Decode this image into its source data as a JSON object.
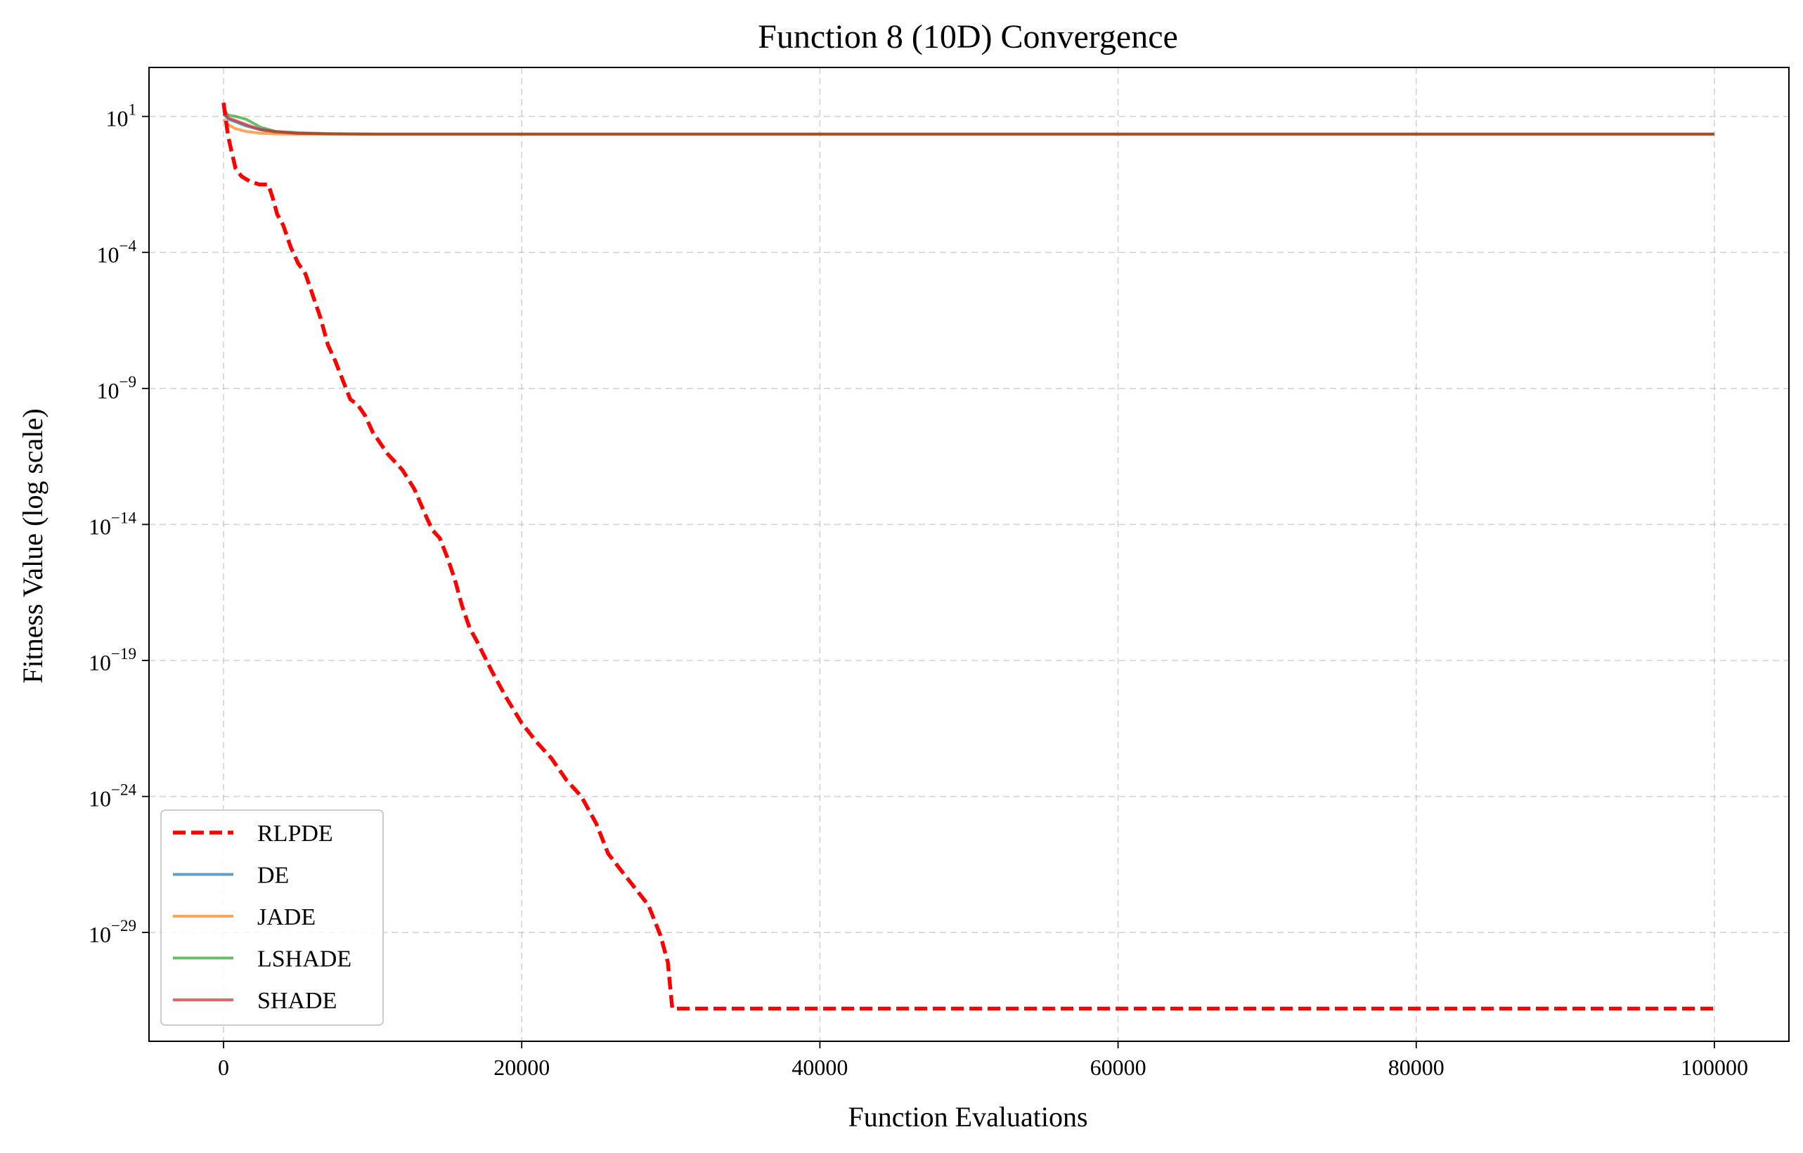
{
  "chart_data": {
    "type": "line",
    "title": "Function 8 (10D) Convergence",
    "xlabel": "Function Evaluations",
    "ylabel": "Fitness Value (log scale)",
    "yscale": "log",
    "xlim": [
      -5000,
      105000
    ],
    "ylim_log10": [
      -33.0,
      2.8
    ],
    "x_ticks": [
      0,
      20000,
      40000,
      60000,
      80000,
      100000
    ],
    "x_tick_labels": [
      "0",
      "20000",
      "40000",
      "60000",
      "80000",
      "100000"
    ],
    "y_ticks_log10": [
      1,
      -4,
      -9,
      -14,
      -19,
      -24,
      -29
    ],
    "y_tick_base": "10",
    "y_tick_exponents": [
      "1",
      "−4",
      "−9",
      "−14",
      "−19",
      "−24",
      "−29"
    ],
    "grid": true,
    "legend_position": "lower-left",
    "series": [
      {
        "name": "RLPDE",
        "color": "#ff0000",
        "style": "dashed",
        "x": [
          0,
          150,
          300,
          500,
          800,
          1200,
          1800,
          2400,
          3000,
          3300,
          3600,
          4000,
          4500,
          5000,
          5500,
          6000,
          6500,
          7000,
          7500,
          8000,
          8500,
          9000,
          9500,
          10000,
          11000,
          12000,
          12800,
          13500,
          14000,
          14500,
          15000,
          15500,
          16000,
          16500,
          17000,
          18000,
          19000,
          20000,
          21000,
          22000,
          23000,
          24000,
          25000,
          25800,
          26500,
          27500,
          28500,
          29300,
          29800,
          30100,
          30200,
          100000
        ],
        "y_log10": [
          1.5,
          0.9,
          0.3,
          -0.2,
          -0.9,
          -1.2,
          -1.4,
          -1.5,
          -1.5,
          -2.0,
          -2.6,
          -3.0,
          -3.8,
          -4.4,
          -4.8,
          -5.6,
          -6.4,
          -7.4,
          -8.0,
          -8.7,
          -9.4,
          -9.6,
          -10.0,
          -10.6,
          -11.4,
          -12.0,
          -12.7,
          -13.6,
          -14.2,
          -14.5,
          -15.2,
          -16.0,
          -17.0,
          -17.8,
          -18.3,
          -19.4,
          -20.4,
          -21.3,
          -22.0,
          -22.6,
          -23.4,
          -24.0,
          -25.0,
          -26.1,
          -26.6,
          -27.3,
          -28.0,
          -29.1,
          -30.1,
          -31.8,
          -31.8,
          -31.8
        ]
      },
      {
        "name": "DE",
        "color": "#1f77b4",
        "style": "solid",
        "x": [
          0,
          300,
          800,
          1500,
          2500,
          3500,
          5000,
          7000,
          10000,
          100000
        ],
        "y_log10": [
          1.1,
          0.9,
          0.8,
          0.65,
          0.5,
          0.42,
          0.38,
          0.36,
          0.35,
          0.35
        ]
      },
      {
        "name": "JADE",
        "color": "#ff7f0e",
        "style": "solid",
        "x": [
          0,
          300,
          800,
          1500,
          2500,
          3500,
          5000,
          7000,
          10000,
          100000
        ],
        "y_log10": [
          0.9,
          0.7,
          0.55,
          0.45,
          0.38,
          0.36,
          0.35,
          0.35,
          0.35,
          0.35
        ]
      },
      {
        "name": "LSHADE",
        "color": "#2ca02c",
        "style": "solid",
        "x": [
          0,
          300,
          800,
          1500,
          2000,
          2500,
          3500,
          5000,
          7000,
          10000,
          100000
        ],
        "y_log10": [
          1.3,
          1.05,
          1.0,
          0.9,
          0.75,
          0.6,
          0.45,
          0.4,
          0.37,
          0.35,
          0.35
        ]
      },
      {
        "name": "SHADE",
        "color": "#d62728",
        "style": "solid",
        "x": [
          0,
          300,
          800,
          1500,
          2500,
          3500,
          5000,
          7000,
          10000,
          100000
        ],
        "y_log10": [
          1.2,
          0.95,
          0.85,
          0.7,
          0.52,
          0.44,
          0.38,
          0.36,
          0.35,
          0.35
        ]
      }
    ]
  }
}
